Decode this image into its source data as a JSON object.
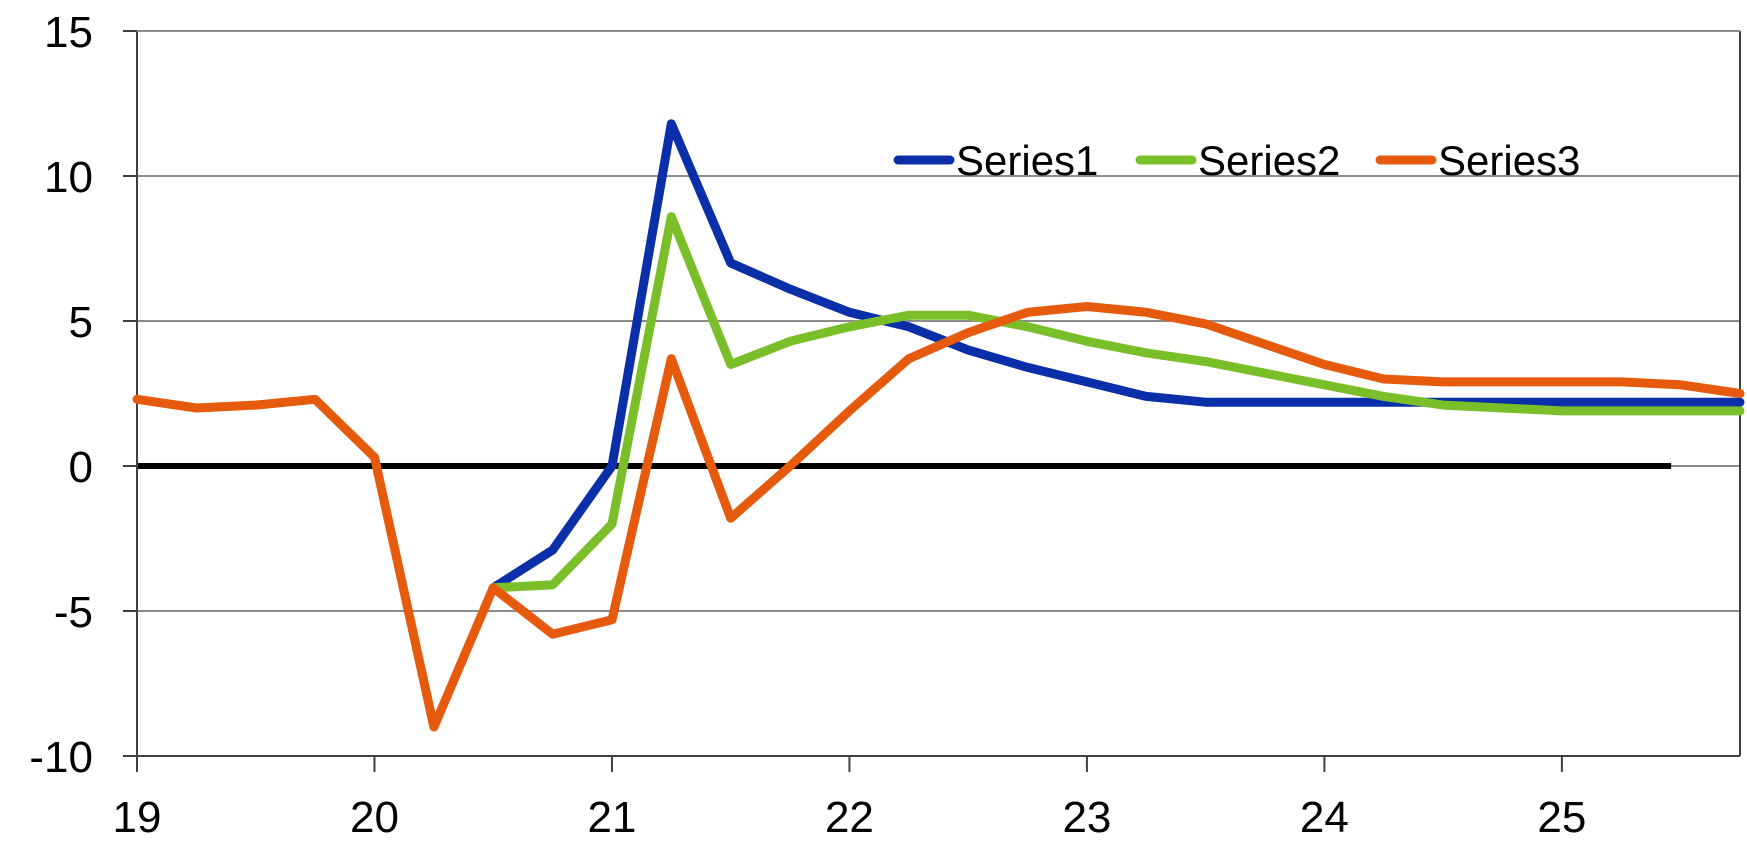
{
  "chart_data": {
    "type": "line",
    "title": "",
    "xlabel": "",
    "ylabel": "",
    "xlim": [
      19,
      25.75
    ],
    "ylim": [
      -10,
      15
    ],
    "x_ticks": [
      19,
      20,
      21,
      22,
      23,
      24,
      25
    ],
    "y_ticks": [
      -10,
      -5,
      0,
      5,
      10,
      15
    ],
    "x_tick_labels": [
      "19",
      "20",
      "21",
      "22",
      "23",
      "24",
      "25"
    ],
    "y_tick_labels": [
      "-10",
      "-5",
      "0",
      "5",
      "10",
      "15"
    ],
    "grid": "horizontal",
    "legend_position": "top-right",
    "zero_line": true,
    "zero_line_color": "#000000",
    "series": [
      {
        "name": "Series1",
        "color": "#0a2fa8",
        "x": [
          20.5,
          20.75,
          21.0,
          21.25,
          21.5,
          21.75,
          22.0,
          22.25,
          22.5,
          22.75,
          23.0,
          23.25,
          23.5,
          23.75,
          24.0,
          24.25,
          24.5,
          24.75,
          25.0,
          25.25,
          25.5,
          25.75
        ],
        "values": [
          -4.2,
          -2.9,
          0.0,
          11.8,
          7.0,
          6.1,
          5.3,
          4.8,
          4.0,
          3.4,
          2.9,
          2.4,
          2.2,
          2.2,
          2.2,
          2.2,
          2.2,
          2.2,
          2.2,
          2.2,
          2.2,
          2.2
        ]
      },
      {
        "name": "Series2",
        "color": "#7abf2a",
        "x": [
          20.5,
          20.75,
          21.0,
          21.25,
          21.5,
          21.75,
          22.0,
          22.25,
          22.5,
          22.75,
          23.0,
          23.25,
          23.5,
          23.75,
          24.0,
          24.25,
          24.5,
          24.75,
          25.0,
          25.25,
          25.5,
          25.75
        ],
        "values": [
          -4.2,
          -4.1,
          -2.0,
          8.6,
          3.5,
          4.3,
          4.8,
          5.2,
          5.2,
          4.8,
          4.3,
          3.9,
          3.6,
          3.2,
          2.8,
          2.4,
          2.1,
          2.0,
          1.9,
          1.9,
          1.9,
          1.9
        ]
      },
      {
        "name": "Series3",
        "color": "#e65a0e",
        "x": [
          19.0,
          19.25,
          19.5,
          19.75,
          20.0,
          20.25,
          20.5,
          20.75,
          21.0,
          21.25,
          21.5,
          21.75,
          22.0,
          22.25,
          22.5,
          22.75,
          23.0,
          23.25,
          23.5,
          23.75,
          24.0,
          24.25,
          24.5,
          24.75,
          25.0,
          25.25,
          25.5,
          25.75
        ],
        "values": [
          2.3,
          2.0,
          2.1,
          2.3,
          0.3,
          -9.0,
          -4.2,
          -5.8,
          -5.3,
          3.7,
          -1.8,
          0.0,
          1.9,
          3.7,
          4.6,
          5.3,
          5.5,
          5.3,
          4.9,
          4.2,
          3.5,
          3.0,
          2.9,
          2.9,
          2.9,
          2.9,
          2.8,
          2.5
        ]
      }
    ]
  }
}
